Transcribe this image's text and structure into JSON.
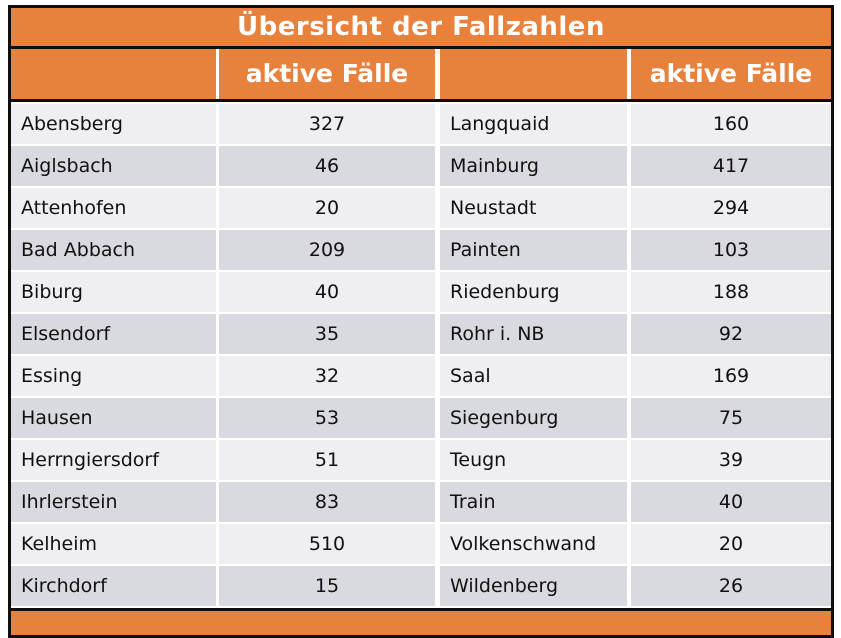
{
  "table": {
    "title": "Übersicht der Fallzahlen",
    "header": {
      "col1": "",
      "col2": "aktive Fälle",
      "col3": "",
      "col4": "aktive Fälle"
    },
    "rows": [
      {
        "name_left": "Abensberg",
        "value_left": "327",
        "name_right": "Langquaid",
        "value_right": "160"
      },
      {
        "name_left": "Aiglsbach",
        "value_left": "46",
        "name_right": "Mainburg",
        "value_right": "417"
      },
      {
        "name_left": "Attenhofen",
        "value_left": "20",
        "name_right": "Neustadt",
        "value_right": "294"
      },
      {
        "name_left": "Bad Abbach",
        "value_left": "209",
        "name_right": "Painten",
        "value_right": "103"
      },
      {
        "name_left": "Biburg",
        "value_left": "40",
        "name_right": "Riedenburg",
        "value_right": "188"
      },
      {
        "name_left": "Elsendorf",
        "value_left": "35",
        "name_right": "Rohr i. NB",
        "value_right": "92"
      },
      {
        "name_left": "Essing",
        "value_left": "32",
        "name_right": "Saal",
        "value_right": "169"
      },
      {
        "name_left": "Hausen",
        "value_left": "53",
        "name_right": "Siegenburg",
        "value_right": "75"
      },
      {
        "name_left": "Herrngiersdorf",
        "value_left": "51",
        "name_right": "Teugn",
        "value_right": "39"
      },
      {
        "name_left": "Ihrlerstein",
        "value_left": "83",
        "name_right": "Train",
        "value_right": "40"
      },
      {
        "name_left": "Kelheim",
        "value_left": "510",
        "name_right": "Volkenschwand",
        "value_right": "20"
      },
      {
        "name_left": "Kirchdorf",
        "value_left": "15",
        "name_right": "Wildenberg",
        "value_right": "26"
      }
    ]
  },
  "chart_data": {
    "type": "table",
    "title": "Übersicht der Fallzahlen",
    "columns": [
      "",
      "aktive Fälle",
      "",
      "aktive Fälle"
    ],
    "rows": [
      [
        "Abensberg",
        327,
        "Langquaid",
        160
      ],
      [
        "Aiglsbach",
        46,
        "Mainburg",
        417
      ],
      [
        "Attenhofen",
        20,
        "Neustadt",
        294
      ],
      [
        "Bad Abbach",
        209,
        "Painten",
        103
      ],
      [
        "Biburg",
        40,
        "Riedenburg",
        188
      ],
      [
        "Elsendorf",
        35,
        "Rohr i. NB",
        92
      ],
      [
        "Essing",
        32,
        "Saal",
        169
      ],
      [
        "Hausen",
        53,
        "Siegenburg",
        75
      ],
      [
        "Herrngiersdorf",
        51,
        "Teugn",
        39
      ],
      [
        "Ihrlerstein",
        83,
        "Train",
        40
      ],
      [
        "Kelheim",
        510,
        "Volkenschwand",
        20
      ],
      [
        "Kirchdorf",
        15,
        "Wildenberg",
        26
      ]
    ]
  },
  "colors": {
    "orange": "#e8813c",
    "row_light": "#efeff3",
    "row_dark": "#d9d9e0",
    "border": "#0e0e0e",
    "header_text": "#ffffff",
    "body_text": "#111111"
  }
}
